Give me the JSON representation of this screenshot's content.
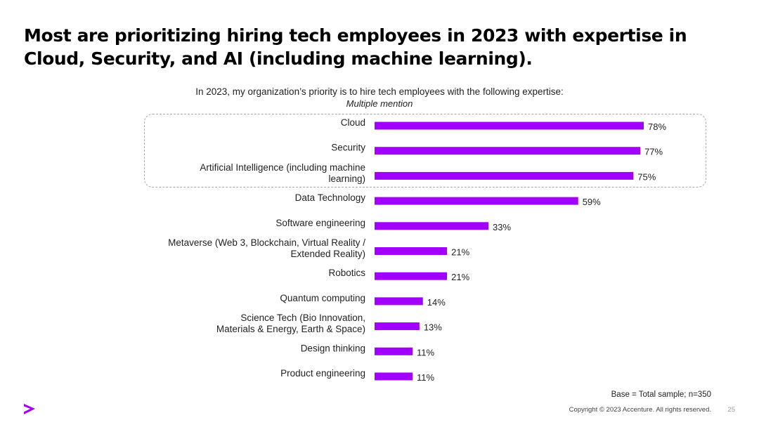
{
  "slide": {
    "title_line1": "Most are prioritizing hiring tech employees in 2023 with expertise in",
    "title_line2": "Cloud, Security, and AI (including machine learning).",
    "subtitle": "In 2023, my organization’s priority is to hire tech employees with the following expertise:",
    "subnote": "Multiple mention",
    "base_note": "Base = Total sample; n=350",
    "copyright": "Copyright © 2023 Accenture. All rights reserved.",
    "page_number": "25",
    "logo_icon": "accenture-chevron-icon"
  },
  "colors": {
    "bar": "#a100ff",
    "logo": "#a100ff",
    "border": "#a9a9a9"
  },
  "chart_data": {
    "type": "bar",
    "orientation": "horizontal",
    "title": "In 2023, my organization’s priority is to hire tech employees with the following expertise:",
    "xlim": [
      0,
      78
    ],
    "unit": "%",
    "highlighted_categories": [
      "Cloud",
      "Security",
      "Artificial Intelligence (including machine learning)"
    ],
    "categories": [
      {
        "label_lines": [
          "Cloud"
        ],
        "value": 78,
        "value_label": "78%"
      },
      {
        "label_lines": [
          "Security"
        ],
        "value": 77,
        "value_label": "77%"
      },
      {
        "label_lines": [
          "Artificial Intelligence (including machine",
          "learning)"
        ],
        "value": 75,
        "value_label": "75%"
      },
      {
        "label_lines": [
          "Data Technology"
        ],
        "value": 59,
        "value_label": "59%"
      },
      {
        "label_lines": [
          "Software engineering"
        ],
        "value": 33,
        "value_label": "33%"
      },
      {
        "label_lines": [
          "Metaverse (Web 3, Blockchain, Virtual Reality /",
          "Extended Reality)"
        ],
        "value": 21,
        "value_label": "21%"
      },
      {
        "label_lines": [
          "Robotics"
        ],
        "value": 21,
        "value_label": "21%"
      },
      {
        "label_lines": [
          "Quantum computing"
        ],
        "value": 14,
        "value_label": "14%"
      },
      {
        "label_lines": [
          "Science Tech (Bio Innovation,",
          "Materials & Energy, Earth & Space)"
        ],
        "value": 13,
        "value_label": "13%"
      },
      {
        "label_lines": [
          "Design thinking"
        ],
        "value": 11,
        "value_label": "11%"
      },
      {
        "label_lines": [
          "Product engineering"
        ],
        "value": 11,
        "value_label": "11%"
      }
    ]
  }
}
